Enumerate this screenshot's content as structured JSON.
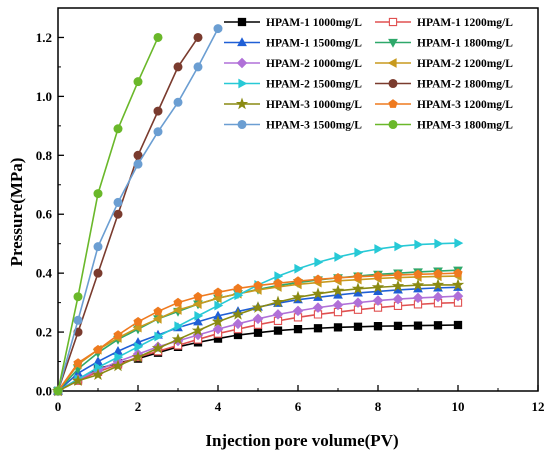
{
  "chart_data": {
    "type": "line",
    "title": "",
    "xlabel": "Injection pore volume(PV)",
    "ylabel": "Pressure(MPa)",
    "xlim": [
      0,
      12
    ],
    "ylim": [
      0,
      1.3
    ],
    "xticks": [
      0,
      2,
      4,
      6,
      8,
      10,
      12
    ],
    "yticks": [
      0.0,
      0.2,
      0.4,
      0.6,
      0.8,
      1.0,
      1.2
    ],
    "xtick_labels": [
      "0",
      "2",
      "4",
      "6",
      "8",
      "10",
      "12"
    ],
    "ytick_labels": [
      "0.0",
      "0.2",
      "0.4",
      "0.6",
      "0.8",
      "1.0",
      "1.2"
    ],
    "grid": false,
    "legend_position": "top-right",
    "series": [
      {
        "name": "HPAM-1 1000mg/L",
        "color": "#000000",
        "marker": "square",
        "filled": true,
        "x": [
          0,
          0.5,
          1,
          1.5,
          2,
          2.5,
          3,
          3.5,
          4,
          4.5,
          5,
          5.5,
          6,
          6.5,
          7,
          7.5,
          8,
          8.5,
          9,
          9.5,
          10
        ],
        "y": [
          0,
          0.04,
          0.075,
          0.095,
          0.11,
          0.13,
          0.15,
          0.165,
          0.178,
          0.19,
          0.198,
          0.205,
          0.21,
          0.213,
          0.216,
          0.218,
          0.22,
          0.221,
          0.222,
          0.223,
          0.224
        ]
      },
      {
        "name": "HPAM-1 1200mg/L",
        "color": "#e05050",
        "marker": "square",
        "filled": false,
        "x": [
          0,
          0.5,
          1,
          1.5,
          2,
          2.5,
          3,
          3.5,
          4,
          4.5,
          5,
          5.5,
          6,
          6.5,
          7,
          7.5,
          8,
          8.5,
          9,
          9.5,
          10
        ],
        "y": [
          0,
          0.035,
          0.065,
          0.09,
          0.115,
          0.135,
          0.155,
          0.175,
          0.195,
          0.21,
          0.225,
          0.238,
          0.25,
          0.26,
          0.268,
          0.276,
          0.283,
          0.289,
          0.294,
          0.298,
          0.3
        ]
      },
      {
        "name": "HPAM-1 1500mg/L",
        "color": "#1f5fd6",
        "marker": "triangle-up",
        "filled": true,
        "x": [
          0,
          0.5,
          1,
          1.5,
          2,
          2.5,
          3,
          3.5,
          4,
          4.5,
          5,
          5.5,
          6,
          6.5,
          7,
          7.5,
          8,
          8.5,
          9,
          9.5,
          10
        ],
        "y": [
          0,
          0.06,
          0.1,
          0.135,
          0.165,
          0.19,
          0.215,
          0.235,
          0.255,
          0.27,
          0.285,
          0.298,
          0.31,
          0.318,
          0.326,
          0.333,
          0.338,
          0.343,
          0.347,
          0.35,
          0.352
        ]
      },
      {
        "name": "HPAM-1 1800mg/L",
        "color": "#2ea86a",
        "marker": "triangle-down",
        "filled": true,
        "x": [
          0,
          0.5,
          1,
          1.5,
          2,
          2.5,
          3,
          3.5,
          4,
          4.5,
          5,
          5.5,
          6,
          6.5,
          7,
          7.5,
          8,
          8.5,
          9,
          9.5,
          10
        ],
        "y": [
          0,
          0.075,
          0.13,
          0.175,
          0.21,
          0.245,
          0.27,
          0.295,
          0.315,
          0.33,
          0.345,
          0.358,
          0.368,
          0.377,
          0.384,
          0.39,
          0.396,
          0.4,
          0.404,
          0.407,
          0.41
        ]
      },
      {
        "name": "HPAM-2 1000mg/L",
        "color": "#b070d8",
        "marker": "diamond",
        "filled": true,
        "x": [
          0,
          0.5,
          1,
          1.5,
          2,
          2.5,
          3,
          3.5,
          4,
          4.5,
          5,
          5.5,
          6,
          6.5,
          7,
          7.5,
          8,
          8.5,
          9,
          9.5,
          10
        ],
        "y": [
          0,
          0.04,
          0.07,
          0.1,
          0.125,
          0.15,
          0.17,
          0.19,
          0.21,
          0.228,
          0.245,
          0.26,
          0.272,
          0.283,
          0.292,
          0.3,
          0.307,
          0.312,
          0.316,
          0.319,
          0.322
        ]
      },
      {
        "name": "HPAM-2 1200mg/L",
        "color": "#c89a1e",
        "marker": "triangle-left",
        "filled": true,
        "x": [
          0,
          0.5,
          1,
          1.5,
          2,
          2.5,
          3,
          3.5,
          4,
          4.5,
          5,
          5.5,
          6,
          6.5,
          7,
          7.5,
          8,
          8.5,
          9,
          9.5,
          10
        ],
        "y": [
          0,
          0.09,
          0.14,
          0.18,
          0.215,
          0.245,
          0.275,
          0.295,
          0.315,
          0.33,
          0.343,
          0.353,
          0.362,
          0.368,
          0.374,
          0.378,
          0.382,
          0.385,
          0.387,
          0.389,
          0.39
        ]
      },
      {
        "name": "HPAM-2 1500mg/L",
        "color": "#27c9d6",
        "marker": "triangle-right",
        "filled": true,
        "x": [
          0,
          0.5,
          1,
          1.5,
          2,
          2.5,
          3,
          3.5,
          4,
          4.5,
          5,
          5.5,
          6,
          6.5,
          7,
          7.5,
          8,
          8.5,
          9,
          9.5,
          10
        ],
        "y": [
          0,
          0.04,
          0.08,
          0.115,
          0.15,
          0.185,
          0.22,
          0.255,
          0.29,
          0.325,
          0.36,
          0.39,
          0.415,
          0.437,
          0.455,
          0.47,
          0.482,
          0.491,
          0.497,
          0.5,
          0.502
        ]
      },
      {
        "name": "HPAM-2 1800mg/L",
        "color": "#7a3b2e",
        "marker": "circle",
        "filled": true,
        "x": [
          0,
          0.5,
          1,
          1.5,
          2,
          2.5,
          3,
          3.5
        ],
        "y": [
          0,
          0.2,
          0.4,
          0.6,
          0.8,
          0.95,
          1.1,
          1.2
        ]
      },
      {
        "name": "HPAM-3 1000mg/L",
        "color": "#8a8a12",
        "marker": "star",
        "filled": true,
        "x": [
          0,
          0.5,
          1,
          1.5,
          2,
          2.5,
          3,
          3.5,
          4,
          4.5,
          5,
          5.5,
          6,
          6.5,
          7,
          7.5,
          8,
          8.5,
          9,
          9.5,
          10
        ],
        "y": [
          0,
          0.035,
          0.055,
          0.085,
          0.115,
          0.145,
          0.175,
          0.205,
          0.235,
          0.26,
          0.283,
          0.302,
          0.318,
          0.33,
          0.34,
          0.347,
          0.352,
          0.356,
          0.359,
          0.36,
          0.36
        ]
      },
      {
        "name": "HPAM-3 1200mg/L",
        "color": "#ef7a1f",
        "marker": "pentagon",
        "filled": true,
        "x": [
          0,
          0.5,
          1,
          1.5,
          2,
          2.5,
          3,
          3.5,
          4,
          4.5,
          5,
          5.5,
          6,
          6.5,
          7,
          7.5,
          8,
          8.5,
          9,
          9.5,
          10
        ],
        "y": [
          0,
          0.095,
          0.14,
          0.19,
          0.235,
          0.27,
          0.3,
          0.32,
          0.335,
          0.348,
          0.358,
          0.366,
          0.373,
          0.379,
          0.384,
          0.388,
          0.391,
          0.394,
          0.396,
          0.398,
          0.4
        ]
      },
      {
        "name": "HPAM-3 1500mg/L",
        "color": "#6b9ed2",
        "marker": "circle",
        "filled": true,
        "x": [
          0,
          0.5,
          1,
          1.5,
          2,
          2.5,
          3,
          3.5,
          4
        ],
        "y": [
          0,
          0.24,
          0.49,
          0.64,
          0.77,
          0.88,
          0.98,
          1.1,
          1.23
        ]
      },
      {
        "name": "HPAM-3 1800mg/L",
        "color": "#6ab82a",
        "marker": "circle",
        "filled": true,
        "x": [
          0,
          0.5,
          1,
          1.5,
          2,
          2.5
        ],
        "y": [
          0,
          0.32,
          0.67,
          0.89,
          1.05,
          1.2
        ]
      }
    ]
  }
}
